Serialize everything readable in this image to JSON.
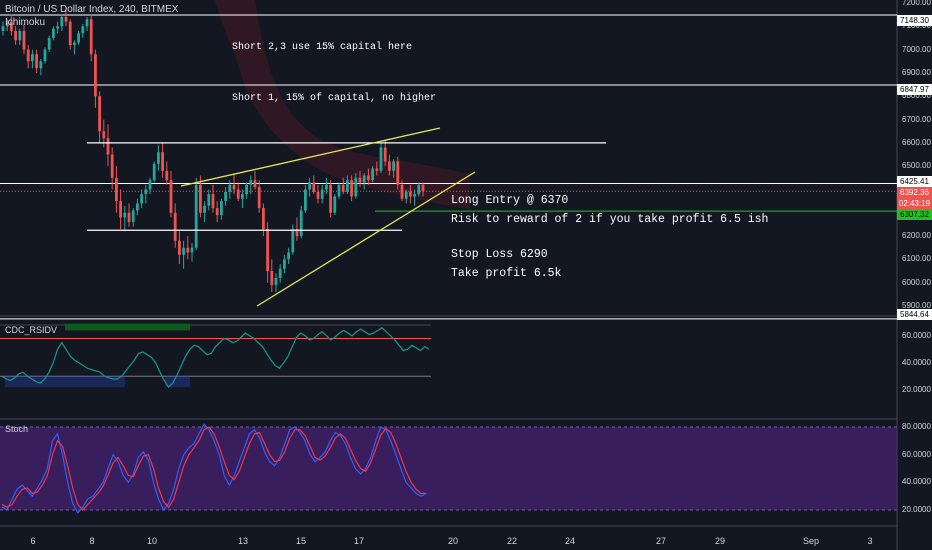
{
  "header": {
    "symbol_title": "Bitcoin / US Dollar Index, 240, BITMEX",
    "indicator": "Ichimoku"
  },
  "annotations": {
    "short23": "Short 2,3 use 15% capital here",
    "short1": "Short 1, 15% of capital, no higher",
    "long_entry": "Long Entry @ 6370",
    "risk_reward": "Risk to reward of 2 if you take profit 6.5 ish",
    "stop_loss": "Stop Loss 6290",
    "take_profit": "Take profit 6.5k"
  },
  "price_axis": {
    "ticks": [
      "7200.00",
      "7100.00",
      "7000.00",
      "6900.00",
      "6800.00",
      "6700.00",
      "6600.00",
      "6500.00",
      "6400.00",
      "6300.00",
      "6200.00",
      "6100.00",
      "6000.00",
      "5900.00"
    ],
    "tags": [
      {
        "text": "7148.30",
        "bg": "#ffffff",
        "fg": "#000000"
      },
      {
        "text": "6847.97",
        "bg": "#ffffff",
        "fg": "#000000"
      },
      {
        "text": "6425.41",
        "bg": "#ffffff",
        "fg": "#000000"
      },
      {
        "text": "6392.36",
        "bg": "#ef5350",
        "fg": "#ffffff"
      },
      {
        "text": "02:43:19",
        "bg": "#ef5350",
        "fg": "#ffffff"
      },
      {
        "text": "6307.32",
        "bg": "#21c121",
        "fg": "#000000"
      },
      {
        "text": "5844.64",
        "bg": "#ffffff",
        "fg": "#000000"
      }
    ]
  },
  "rsi_pane": {
    "label": "CDC_RSIDV",
    "ticks": [
      "60.0000",
      "40.0000",
      "20.0000"
    ]
  },
  "stoch_pane": {
    "label": "Stoch",
    "ticks": [
      "80.0000",
      "60.0000",
      "40.0000",
      "20.0000"
    ]
  },
  "time_axis": {
    "labels": [
      "6",
      "8",
      "10",
      "13",
      "15",
      "17",
      "20",
      "22",
      "24",
      "27",
      "29",
      "Sep",
      "3"
    ]
  },
  "chart_data": {
    "type": "candlestick",
    "symbol": "Bitcoin / US Dollar Index",
    "interval": "240",
    "exchange": "BITMEX",
    "price_range": [
      5860,
      7220
    ],
    "candles": [
      [
        7080,
        7120,
        7060,
        7100
      ],
      [
        7100,
        7130,
        7080,
        7120
      ],
      [
        7120,
        7150,
        7060,
        7080
      ],
      [
        7080,
        7100,
        7020,
        7040
      ],
      [
        7040,
        7090,
        7020,
        7080
      ],
      [
        7080,
        7110,
        6980,
        7000
      ],
      [
        7000,
        7020,
        6920,
        6950
      ],
      [
        6950,
        7000,
        6920,
        6980
      ],
      [
        6980,
        7000,
        6900,
        6920
      ],
      [
        6920,
        6960,
        6890,
        6950
      ],
      [
        6950,
        7010,
        6940,
        7000
      ],
      [
        7000,
        7060,
        6990,
        7050
      ],
      [
        7050,
        7100,
        7040,
        7090
      ],
      [
        7090,
        7120,
        7070,
        7100
      ],
      [
        7100,
        7150,
        7080,
        7140
      ],
      [
        7140,
        7180,
        7100,
        7120
      ],
      [
        7120,
        7130,
        7000,
        7020
      ],
      [
        7020,
        7040,
        6980,
        7030
      ],
      [
        7030,
        7080,
        7020,
        7070
      ],
      [
        7070,
        7110,
        7050,
        7100
      ],
      [
        7100,
        7140,
        7080,
        7130
      ],
      [
        7130,
        7150,
        6950,
        6980
      ],
      [
        6980,
        7000,
        6750,
        6800
      ],
      [
        6800,
        6820,
        6600,
        6650
      ],
      [
        6650,
        6700,
        6580,
        6620
      ],
      [
        6620,
        6680,
        6500,
        6550
      ],
      [
        6550,
        6580,
        6400,
        6450
      ],
      [
        6450,
        6500,
        6300,
        6350
      ],
      [
        6350,
        6400,
        6230,
        6280
      ],
      [
        6280,
        6330,
        6220,
        6300
      ],
      [
        6300,
        6340,
        6240,
        6260
      ],
      [
        6260,
        6320,
        6240,
        6310
      ],
      [
        6310,
        6360,
        6290,
        6340
      ],
      [
        6340,
        6400,
        6320,
        6380
      ],
      [
        6380,
        6420,
        6340,
        6400
      ],
      [
        6400,
        6450,
        6380,
        6440
      ],
      [
        6440,
        6520,
        6430,
        6510
      ],
      [
        6510,
        6590,
        6480,
        6560
      ],
      [
        6560,
        6600,
        6450,
        6480
      ],
      [
        6480,
        6520,
        6420,
        6440
      ],
      [
        6440,
        6480,
        6280,
        6300
      ],
      [
        6300,
        6340,
        6150,
        6180
      ],
      [
        6180,
        6220,
        6080,
        6120
      ],
      [
        6120,
        6180,
        6060,
        6150
      ],
      [
        6150,
        6200,
        6100,
        6130
      ],
      [
        6130,
        6170,
        6090,
        6150
      ],
      [
        6150,
        6450,
        6140,
        6420
      ],
      [
        6420,
        6460,
        6280,
        6300
      ],
      [
        6300,
        6350,
        6260,
        6330
      ],
      [
        6330,
        6400,
        6310,
        6380
      ],
      [
        6380,
        6420,
        6300,
        6320
      ],
      [
        6320,
        6350,
        6260,
        6290
      ],
      [
        6290,
        6360,
        6270,
        6350
      ],
      [
        6350,
        6410,
        6330,
        6390
      ],
      [
        6390,
        6440,
        6360,
        6420
      ],
      [
        6420,
        6470,
        6380,
        6400
      ],
      [
        6400,
        6430,
        6350,
        6360
      ],
      [
        6360,
        6400,
        6320,
        6380
      ],
      [
        6380,
        6430,
        6360,
        6420
      ],
      [
        6420,
        6460,
        6380,
        6440
      ],
      [
        6440,
        6480,
        6400,
        6410
      ],
      [
        6410,
        6440,
        6300,
        6320
      ],
      [
        6320,
        6340,
        6200,
        6230
      ],
      [
        6230,
        6260,
        6000,
        6050
      ],
      [
        6050,
        6100,
        5960,
        5990
      ],
      [
        5990,
        6040,
        5960,
        6020
      ],
      [
        6020,
        6080,
        6000,
        6060
      ],
      [
        6060,
        6120,
        6040,
        6100
      ],
      [
        6100,
        6150,
        6080,
        6130
      ],
      [
        6130,
        6250,
        6120,
        6230
      ],
      [
        6230,
        6280,
        6180,
        6200
      ],
      [
        6200,
        6330,
        6190,
        6310
      ],
      [
        6310,
        6420,
        6300,
        6400
      ],
      [
        6400,
        6450,
        6370,
        6430
      ],
      [
        6430,
        6460,
        6380,
        6390
      ],
      [
        6390,
        6420,
        6340,
        6360
      ],
      [
        6360,
        6420,
        6340,
        6400
      ],
      [
        6400,
        6450,
        6380,
        6420
      ],
      [
        6420,
        6440,
        6280,
        6300
      ],
      [
        6300,
        6380,
        6290,
        6370
      ],
      [
        6370,
        6430,
        6360,
        6420
      ],
      [
        6420,
        6450,
        6380,
        6390
      ],
      [
        6390,
        6460,
        6380,
        6440
      ],
      [
        6440,
        6460,
        6350,
        6370
      ],
      [
        6370,
        6470,
        6360,
        6450
      ],
      [
        6450,
        6480,
        6410,
        6430
      ],
      [
        6430,
        6470,
        6400,
        6460
      ],
      [
        6460,
        6490,
        6420,
        6440
      ],
      [
        6440,
        6500,
        6430,
        6490
      ],
      [
        6490,
        6520,
        6460,
        6480
      ],
      [
        6480,
        6600,
        6470,
        6580
      ],
      [
        6580,
        6610,
        6500,
        6520
      ],
      [
        6520,
        6550,
        6460,
        6480
      ],
      [
        6480,
        6530,
        6450,
        6520
      ],
      [
        6520,
        6540,
        6400,
        6420
      ],
      [
        6420,
        6440,
        6350,
        6360
      ],
      [
        6360,
        6400,
        6340,
        6390
      ],
      [
        6390,
        6420,
        6340,
        6370
      ],
      [
        6370,
        6400,
        6330,
        6380
      ],
      [
        6380,
        6430,
        6370,
        6420
      ],
      [
        6420,
        6430,
        6370,
        6392
      ]
    ],
    "levels": [
      7148.3,
      6847.97,
      6425.41,
      5844.64
    ],
    "current_price": 6392.36,
    "countdown": "02:43:19",
    "target_level": 6307.32,
    "horizontal_lines": [
      6600,
      6225
    ],
    "wedge_upper": [
      [
        12,
        6430
      ],
      [
        98,
        6670
      ]
    ],
    "wedge_lower": [
      [
        55,
        5890
      ],
      [
        105,
        6470
      ]
    ],
    "rsi": {
      "levels": [
        68,
        58,
        30
      ],
      "band_green": [
        64,
        69
      ],
      "band_blue": [
        22,
        30
      ],
      "values": [
        30,
        28,
        27,
        29,
        32,
        33,
        30,
        28,
        26,
        25,
        28,
        33,
        40,
        50,
        55,
        50,
        45,
        42,
        40,
        38,
        36,
        35,
        34,
        33,
        30,
        29,
        28,
        28,
        30,
        34,
        38,
        42,
        47,
        48,
        46,
        44,
        40,
        33,
        27,
        22,
        25,
        31,
        38,
        45,
        50,
        53,
        52,
        49,
        46,
        47,
        52,
        55,
        58,
        57,
        55,
        56,
        59,
        62,
        60,
        58,
        55,
        52,
        47,
        42,
        38,
        36,
        40,
        45,
        52,
        59,
        62,
        60,
        57,
        58,
        61,
        63,
        60,
        57,
        59,
        62,
        64,
        62,
        60,
        63,
        65,
        63,
        61,
        62,
        64,
        66,
        63,
        60,
        57,
        53,
        49,
        50,
        53,
        51,
        49,
        52,
        50
      ]
    },
    "stoch": {
      "k": [
        22,
        20,
        28,
        35,
        38,
        34,
        30,
        36,
        42,
        50,
        70,
        75,
        60,
        40,
        25,
        18,
        22,
        28,
        30,
        35,
        40,
        50,
        60,
        55,
        45,
        40,
        46,
        58,
        62,
        56,
        40,
        28,
        20,
        25,
        35,
        50,
        60,
        65,
        68,
        75,
        82,
        78,
        70,
        60,
        45,
        38,
        45,
        55,
        65,
        75,
        78,
        72,
        62,
        55,
        52,
        58,
        68,
        78,
        80,
        76,
        70,
        60,
        55,
        58,
        62,
        70,
        76,
        74,
        68,
        58,
        50,
        46,
        50,
        58,
        70,
        80,
        78,
        70,
        60,
        50,
        40,
        36,
        32,
        30,
        32
      ],
      "d": [
        24,
        22,
        24,
        30,
        35,
        36,
        32,
        33,
        38,
        45,
        60,
        70,
        66,
        52,
        36,
        24,
        20,
        24,
        28,
        32,
        37,
        45,
        54,
        58,
        52,
        45,
        44,
        52,
        59,
        60,
        50,
        36,
        26,
        22,
        28,
        40,
        52,
        60,
        65,
        70,
        78,
        80,
        75,
        66,
        55,
        45,
        42,
        48,
        58,
        68,
        75,
        76,
        68,
        60,
        55,
        56,
        62,
        72,
        78,
        78,
        74,
        66,
        58,
        56,
        59,
        65,
        72,
        75,
        72,
        64,
        56,
        50,
        48,
        54,
        64,
        74,
        79,
        76,
        68,
        58,
        48,
        40,
        35,
        32,
        32
      ]
    }
  }
}
